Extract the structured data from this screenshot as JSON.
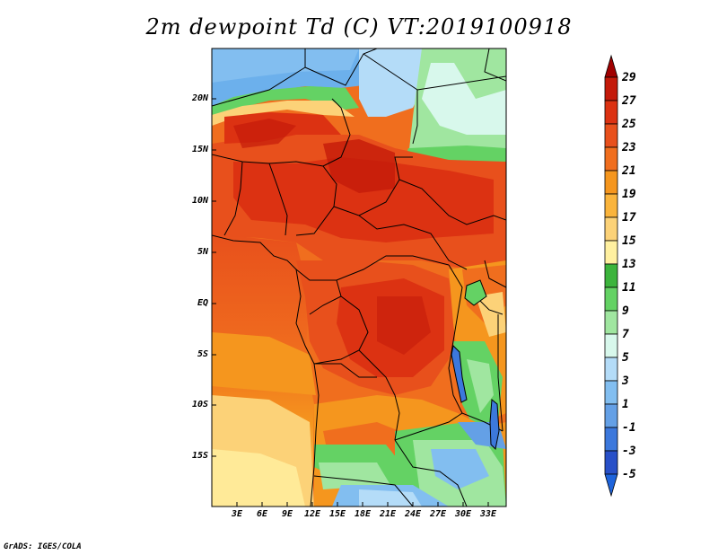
{
  "title": "2m dewpoint Td (C) VT:2019100918",
  "credit": "GrADS: IGES/COLA",
  "lat_labels": [
    "20N",
    "15N",
    "10N",
    "5N",
    "EQ",
    "5S",
    "10S",
    "15S"
  ],
  "lon_labels": [
    "3E",
    "6E",
    "9E",
    "12E",
    "15E",
    "18E",
    "21E",
    "24E",
    "27E",
    "30E",
    "33E"
  ],
  "colorbar": {
    "labels": [
      "29",
      "27",
      "25",
      "23",
      "21",
      "19",
      "17",
      "15",
      "13",
      "11",
      "9",
      "7",
      "5",
      "3",
      "1",
      "-1",
      "-3",
      "-5"
    ],
    "colors": [
      "#a00000",
      "#c41a0a",
      "#dc3212",
      "#e8501c",
      "#f06e1e",
      "#f5961e",
      "#fab43c",
      "#fcd278",
      "#fff0a0",
      "#3cb43c",
      "#64d264",
      "#a0e6a0",
      "#d8f8ec",
      "#b4dcf8",
      "#82bef0",
      "#64a0e6",
      "#3c78dc",
      "#2850c8",
      "#1e50c8"
    ],
    "top_color": "#a00000",
    "bottom_color": "#1e64dc"
  },
  "field_colors": {
    "dry_blue": "#6cb0ec",
    "light_blue": "#b4dcf8",
    "green": "#64d264",
    "light_green": "#a0e6a0",
    "pale_yellow": "#fcd278",
    "orange": "#f5961e",
    "dark_orange": "#f06e1e",
    "red": "#e8501c",
    "deep_red": "#dc3212",
    "darkest": "#c41a0a"
  }
}
